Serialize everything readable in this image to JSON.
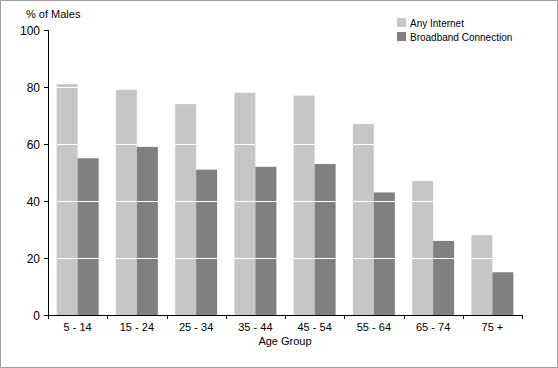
{
  "chart_data": {
    "type": "bar",
    "x_label": "Age Group",
    "y_label": "% of Males",
    "categories": [
      "5 - 14",
      "15 - 24",
      "25 - 34",
      "35 - 44",
      "45 - 54",
      "55 - 64",
      "65 - 74",
      "75 +"
    ],
    "series": [
      {
        "name": "Any Internet",
        "color": "#c6c6c6",
        "values": [
          81,
          79,
          74,
          78,
          77,
          67,
          47,
          28
        ]
      },
      {
        "name": "Broadband Connection",
        "color": "#808080",
        "values": [
          55,
          59,
          51,
          52,
          53,
          43,
          26,
          15
        ]
      }
    ],
    "ylim": [
      0,
      100
    ],
    "yticks": [
      0,
      20,
      40,
      60,
      80,
      100
    ],
    "grid": true,
    "legend": "top-right"
  }
}
